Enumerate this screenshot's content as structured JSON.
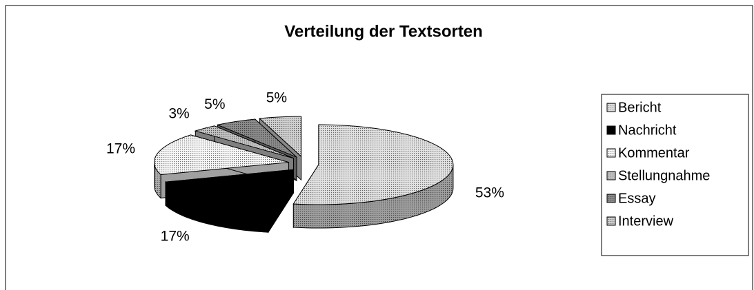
{
  "chart_data": {
    "type": "pie",
    "title": "Verteilung der Textsorten",
    "categories": [
      "Bericht",
      "Nachricht",
      "Kommentar",
      "Stellungnahme",
      "Essay",
      "Interview"
    ],
    "values": [
      53,
      17,
      17,
      3,
      5,
      5
    ],
    "value_labels": [
      "53%",
      "17%",
      "17%",
      "3%",
      "5%",
      "5%"
    ],
    "colors": [
      "#e2e2e2",
      "#000000",
      "#f6f6f6",
      "#c4c4c4",
      "#8c8c8c",
      "#d0d0d0"
    ],
    "legend": "right"
  }
}
